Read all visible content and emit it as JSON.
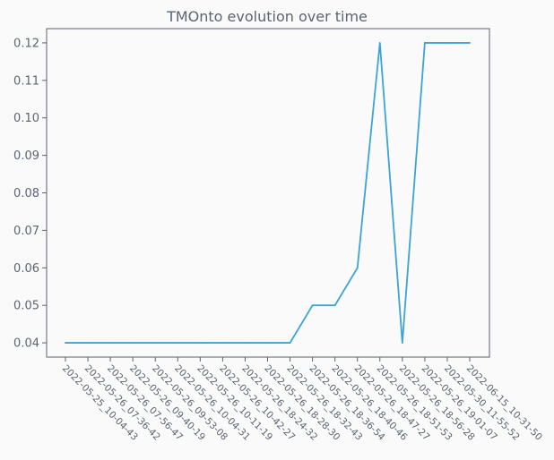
{
  "chart_data": {
    "type": "line",
    "title": "TMOnto evolution over time",
    "xlabel": "",
    "ylabel": "",
    "categories": [
      "2022-05-25_10-04-43",
      "2022-05-26_07-36-42",
      "2022-05-26_07-56-47",
      "2022-05-26_09-40-19",
      "2022-05-26_09-53-08",
      "2022-05-26_10-04-31",
      "2022-05-26_10-11-19",
      "2022-05-26_10-42-27",
      "2022-05-26_18-24-32",
      "2022-05-26_18-28-30",
      "2022-05-26_18-32-43",
      "2022-05-26_18-36-54",
      "2022-05-26_18-40-46",
      "2022-05-26_18-47-27",
      "2022-05-26_18-51-53",
      "2022-05-26_18-56-28",
      "2022-05-26_19-01-07",
      "2022-05-30_11-55-52",
      "2022-06-15_10-31-50"
    ],
    "values": [
      0.04,
      0.04,
      0.04,
      0.04,
      0.04,
      0.04,
      0.04,
      0.04,
      0.04,
      0.04,
      0.04,
      0.05,
      0.05,
      0.06,
      0.12,
      0.04,
      0.12,
      0.12,
      0.12
    ],
    "yticks": [
      "0.04",
      "0.05",
      "0.06",
      "0.07",
      "0.08",
      "0.09",
      "0.10",
      "0.11",
      "0.12"
    ],
    "ylim": [
      0.0362,
      0.1238
    ],
    "grid": false,
    "legend": "none",
    "line_color": "#3ba3d6"
  }
}
